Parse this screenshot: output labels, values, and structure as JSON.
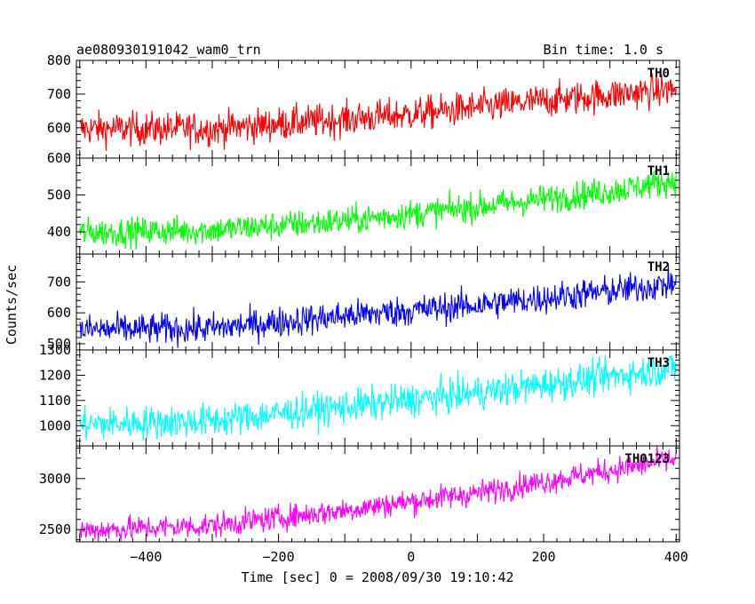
{
  "chart_data": {
    "type": "line",
    "title": "ae080930191042_wam0_trn",
    "bin_time_label": "Bin time: 1.0 s",
    "xlabel": "Time [sec] 0 = 2008/09/30 19:10:42",
    "ylabel": "Counts/sec",
    "xlim": [
      -505,
      405
    ],
    "x_ticks": [
      -400,
      -200,
      0,
      200,
      400
    ],
    "x_tick_labels": [
      "−400",
      "−200",
      "0",
      "200",
      "400"
    ],
    "grid": false,
    "panels": [
      {
        "name": "TH0",
        "color": "#ff0000",
        "ylim": [
          510,
          800
        ],
        "y_ticks": [
          600,
          700,
          800
        ],
        "trend": [
          [
            -500,
            597
          ],
          [
            -300,
            597
          ],
          [
            0,
            640
          ],
          [
            200,
            680
          ],
          [
            400,
            715
          ]
        ],
        "noise": 45
      },
      {
        "name": "TH1",
        "color": "#00ff00",
        "ylim": [
          340,
          600
        ],
        "y_ticks": [
          400,
          500,
          600
        ],
        "trend": [
          [
            -500,
            398
          ],
          [
            -300,
            405
          ],
          [
            -100,
            430
          ],
          [
            100,
            468
          ],
          [
            300,
            510
          ],
          [
            400,
            540
          ]
        ],
        "noise": 35
      },
      {
        "name": "TH2",
        "color": "#0000ff",
        "ylim": [
          480,
          790
        ],
        "y_ticks": [
          500,
          600,
          700
        ],
        "trend": [
          [
            -500,
            545
          ],
          [
            -300,
            550
          ],
          [
            -100,
            590
          ],
          [
            100,
            625
          ],
          [
            300,
            670
          ],
          [
            400,
            695
          ]
        ],
        "noise": 45
      },
      {
        "name": "TH3",
        "color": "#00ffff",
        "ylim": [
          920,
          1300
        ],
        "y_ticks": [
          1000,
          1100,
          1200,
          1300
        ],
        "trend": [
          [
            -500,
            1005
          ],
          [
            -300,
            1020
          ],
          [
            -100,
            1075
          ],
          [
            100,
            1130
          ],
          [
            300,
            1195
          ],
          [
            400,
            1230
          ]
        ],
        "noise": 60
      },
      {
        "name": "TH0123",
        "color": "#ff00ff",
        "ylim": [
          2380,
          3320
        ],
        "y_ticks": [
          2500,
          3000
        ],
        "trend": [
          [
            -500,
            2490
          ],
          [
            -300,
            2540
          ],
          [
            -100,
            2690
          ],
          [
            100,
            2860
          ],
          [
            300,
            3080
          ],
          [
            400,
            3190
          ]
        ],
        "noise": 110
      }
    ]
  }
}
